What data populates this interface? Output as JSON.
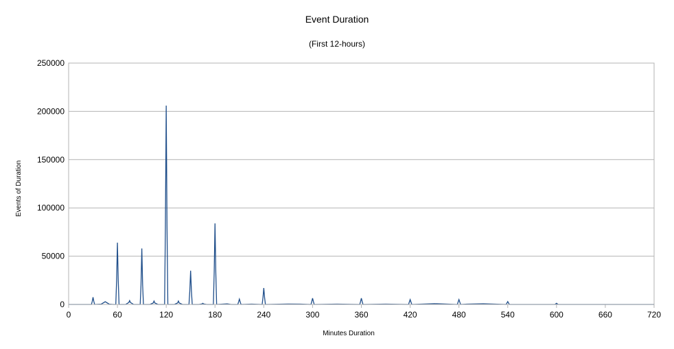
{
  "chart_data": {
    "type": "line",
    "title": "Event Duration",
    "subtitle": "(First 12-hours)",
    "xlabel": "Minutes Duration",
    "ylabel": "Events of Duration",
    "xlim": [
      0,
      720
    ],
    "ylim": [
      0,
      250000
    ],
    "x_ticks": [
      0,
      60,
      120,
      180,
      240,
      300,
      360,
      420,
      480,
      540,
      600,
      660,
      720
    ],
    "y_ticks": [
      0,
      50000,
      100000,
      150000,
      200000,
      250000
    ],
    "grid": "horizontal",
    "legend": "none",
    "line_color": "#1f4e8a",
    "series": [
      {
        "x": [
          0,
          28,
          29,
          30,
          31,
          32,
          40,
          45,
          50,
          55,
          58,
          59,
          60,
          61,
          62,
          70,
          74,
          75,
          76,
          80,
          88,
          89,
          90,
          91,
          92,
          100,
          104,
          105,
          106,
          110,
          118,
          119,
          120,
          121,
          122,
          130,
          134,
          135,
          136,
          140,
          148,
          149,
          150,
          151,
          152,
          160,
          164,
          165,
          166,
          170,
          178,
          179,
          180,
          181,
          182,
          195,
          200,
          208,
          209,
          210,
          211,
          212,
          225,
          238,
          239,
          240,
          241,
          242,
          270,
          285,
          298,
          299,
          300,
          301,
          302,
          330,
          358,
          359,
          360,
          361,
          362,
          390,
          418,
          419,
          420,
          421,
          422,
          450,
          478,
          479,
          480,
          481,
          482,
          490,
          510,
          538,
          539,
          540,
          541,
          542,
          598,
          599,
          600,
          601,
          602,
          720
        ],
        "y": [
          0,
          0,
          3000,
          7500,
          3000,
          0,
          300,
          2800,
          300,
          0,
          0,
          25000,
          64000,
          25000,
          0,
          0,
          2000,
          4000,
          2000,
          0,
          0,
          20000,
          58000,
          20000,
          0,
          0,
          1500,
          3500,
          1500,
          0,
          0,
          80000,
          206000,
          80000,
          0,
          0,
          1500,
          3500,
          1500,
          0,
          0,
          14000,
          35000,
          14000,
          0,
          0,
          500,
          1200,
          500,
          0,
          0,
          33000,
          84000,
          33000,
          0,
          600,
          0,
          0,
          2500,
          5500,
          2500,
          0,
          300,
          0,
          7000,
          17000,
          7000,
          0,
          400,
          300,
          0,
          3000,
          6500,
          3000,
          0,
          300,
          0,
          3000,
          6500,
          3000,
          0,
          300,
          0,
          2500,
          5000,
          2500,
          0,
          800,
          0,
          2500,
          5000,
          2500,
          0,
          300,
          700,
          0,
          1500,
          3000,
          1500,
          0,
          0,
          600,
          1200,
          600,
          0,
          0
        ]
      }
    ]
  }
}
